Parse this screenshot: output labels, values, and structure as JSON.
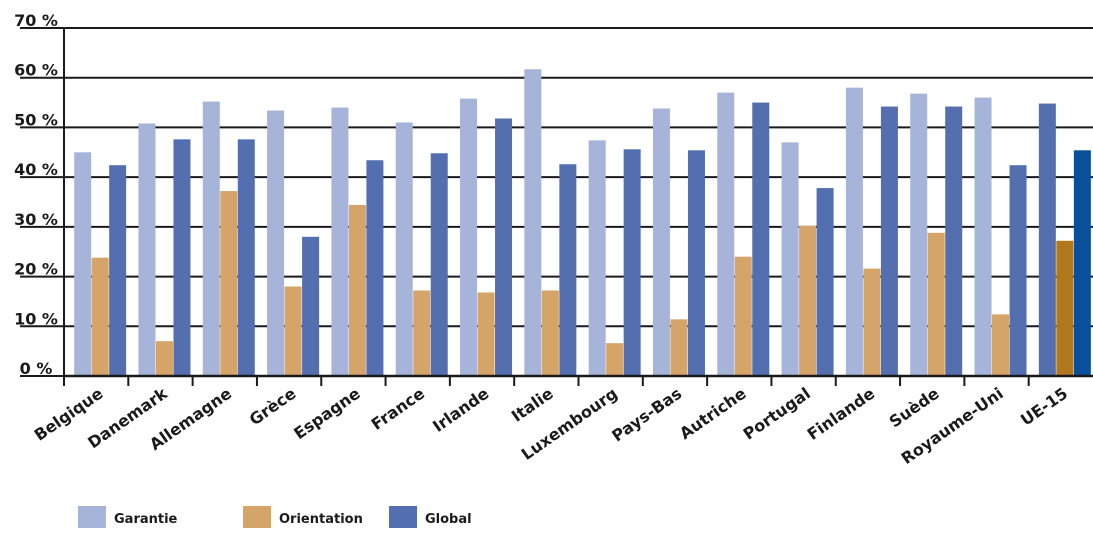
{
  "chart_data": {
    "type": "bar",
    "ylim": [
      0,
      70
    ],
    "yticks": [
      "0 %",
      "10 %",
      "20 %",
      "30 %",
      "40 %",
      "50 %",
      "60 %",
      "70 %"
    ],
    "grid": true,
    "legend_position": "bottom-left",
    "categories": [
      "Belgique",
      "Danemark",
      "Allemagne",
      "Grèce",
      "Espagne",
      "France",
      "Irlande",
      "Italie",
      "Luxembourg",
      "Pays-Bas",
      "Autriche",
      "Portugal",
      "Finlande",
      "Suède",
      "Royaume-Uni",
      "UE-15"
    ],
    "series": [
      {
        "name": "Garantie",
        "color": "#a7b4da",
        "values": [
          45,
          50.8,
          55.2,
          53.4,
          54,
          51,
          55.8,
          61.7,
          47.4,
          53.8,
          57,
          47,
          58,
          56.8,
          56,
          54.8
        ]
      },
      {
        "name": "Orientation",
        "color": "#d4a468",
        "values": [
          23.8,
          7,
          37.2,
          18,
          34.4,
          17.2,
          16.8,
          17.2,
          6.6,
          11.4,
          24,
          30.2,
          21.6,
          28.8,
          12.4,
          27.2
        ]
      },
      {
        "name": "Global",
        "color": "#536fb0",
        "values": [
          42.4,
          47.6,
          47.6,
          28,
          43.4,
          44.8,
          51.8,
          42.6,
          45.6,
          45.4,
          55,
          37.8,
          54.2,
          54.2,
          42.4,
          45.4
        ]
      }
    ],
    "highlight": {
      "category": "UE-15",
      "colors": [
        "#536fb0",
        "#b1771b",
        "#0a4f9c"
      ]
    }
  },
  "legend": [
    {
      "label": "Garantie",
      "color": "#a7b4da"
    },
    {
      "label": "Orientation",
      "color": "#d4a468"
    },
    {
      "label": "Global",
      "color": "#536fb0"
    }
  ]
}
